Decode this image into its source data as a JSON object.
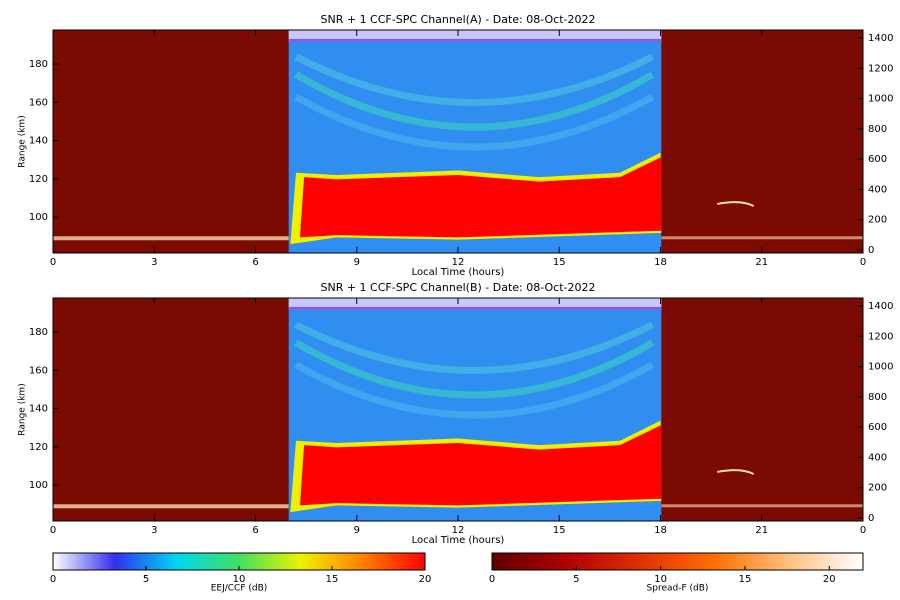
{
  "chart_data": [
    {
      "type": "heatmap",
      "title": "SNR + 1 CCF-SPC Channel(A) - Date: 08-Oct-2022",
      "x_label": "Local Time (hours)",
      "y_label": "Range (km)",
      "xlim": [
        0,
        24
      ],
      "xticks": [
        0,
        3,
        6,
        9,
        12,
        15,
        18,
        21,
        {
          "value": 24,
          "label": "0"
        }
      ],
      "ylim": [
        81.2,
        197.8
      ],
      "yticks": [
        100,
        120,
        140,
        160,
        180
      ],
      "y2lim": [
        -20,
        1453
      ],
      "y2ticks": [
        0,
        200,
        400,
        600,
        800,
        1000,
        1200,
        1400
      ]
    },
    {
      "type": "heatmap",
      "title": "SNR + 1 CCF-SPC Channel(B) - Date: 08-Oct-2022",
      "x_label": "Local Time (hours)",
      "y_label": "Range (km)",
      "xlim": [
        0,
        24
      ],
      "xticks": [
        0,
        3,
        6,
        9,
        12,
        15,
        18,
        21,
        {
          "value": 24,
          "label": "0"
        }
      ],
      "ylim": [
        81.2,
        197.8
      ],
      "yticks": [
        100,
        120,
        140,
        160,
        180
      ],
      "y2lim": [
        -20,
        1453
      ],
      "y2ticks": [
        0,
        200,
        400,
        600,
        800,
        1000,
        1200,
        1400
      ]
    }
  ],
  "colorbars": [
    {
      "label": "EEJ/CCF (dB)",
      "lim": [
        0,
        20
      ],
      "ticks": [
        0,
        5,
        10,
        15,
        20
      ],
      "colors": [
        "#ffffff",
        "#3030f0",
        "#00d8f0",
        "#40e060",
        "#f0f000",
        "#ff8000",
        "#ff0000"
      ]
    },
    {
      "label": "Spread-F (dB)",
      "lim": [
        0,
        22
      ],
      "ticks": [
        0,
        5,
        10,
        15,
        20
      ],
      "colors": [
        "#600000",
        "#b00000",
        "#e03000",
        "#ff7000",
        "#ffc080",
        "#ffffff"
      ]
    }
  ]
}
